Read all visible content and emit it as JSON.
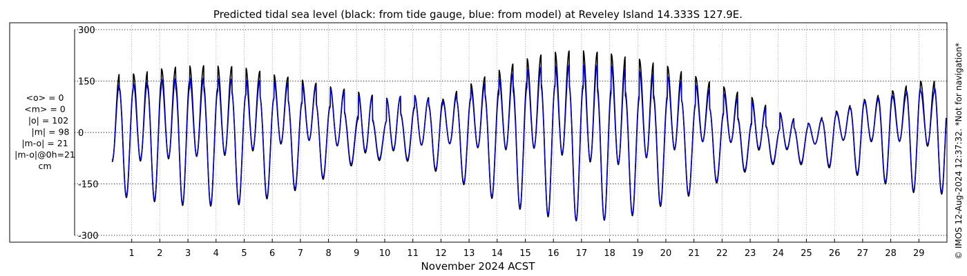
{
  "chart_data": {
    "type": "line",
    "title": "Predicted tidal sea level (black: from tide gauge, blue: from model) at Reveley Island 14.333S 127.9E.",
    "xlabel": "November 2024 ACST",
    "ylabel": "",
    "xlim": [
      0,
      30
    ],
    "ylim": [
      -320,
      320
    ],
    "grid": true,
    "x_ticks": [
      1,
      2,
      3,
      4,
      5,
      6,
      7,
      8,
      9,
      10,
      11,
      12,
      13,
      14,
      15,
      16,
      17,
      18,
      19,
      20,
      21,
      22,
      23,
      24,
      25,
      26,
      27,
      28,
      29
    ],
    "y_ticks": [
      300,
      150,
      0,
      -150,
      -300
    ],
    "y_tick_labels": [
      "300",
      "150",
      "0",
      "-150",
      "-300"
    ],
    "series_style": "semidiurnal tidal oscillation, two highs and two lows per day",
    "series": [
      {
        "color": "#000000",
        "day": [
          1,
          2,
          3,
          4,
          5,
          6,
          7,
          8,
          9,
          10,
          11,
          12,
          13,
          14,
          15,
          16,
          17,
          18,
          19,
          20,
          21,
          22,
          23,
          24,
          25,
          26,
          27,
          28,
          29
        ],
        "high_major": [
          170,
          185,
          195,
          195,
          190,
          170,
          155,
          135,
          120,
          100,
          110,
          95,
          140,
          180,
          215,
          235,
          240,
          230,
          215,
          195,
          165,
          135,
          105,
          60,
          25,
          60,
          95,
          120,
          150
        ],
        "high_minor": [
          125,
          150,
          150,
          130,
          110,
          100,
          85,
          80,
          40,
          30,
          70,
          90,
          95,
          125,
          150,
          140,
          130,
          115,
          100,
          100,
          85,
          55,
          25,
          10,
          15,
          50,
          85,
          100,
          125
        ],
        "low_major": [
          -190,
          -205,
          -215,
          -215,
          -210,
          -190,
          -165,
          -130,
          -90,
          -80,
          -85,
          -120,
          -160,
          -200,
          -230,
          -250,
          -260,
          -255,
          -240,
          -210,
          -180,
          -140,
          -110,
          -90,
          -95,
          -105,
          -130,
          -155,
          -180
        ],
        "low_minor": [
          -85,
          -80,
          -70,
          -70,
          -60,
          -40,
          -20,
          -30,
          -60,
          -60,
          -40,
          -30,
          -40,
          -55,
          -40,
          -60,
          -80,
          -100,
          -80,
          -60,
          -30,
          -20,
          -50,
          -55,
          -40,
          -20,
          -30,
          -20,
          -40
        ]
      },
      {
        "color": "#0000d0",
        "day": [
          1,
          2,
          3,
          4,
          5,
          6,
          7,
          8,
          9,
          10,
          11,
          12,
          13,
          14,
          15,
          16,
          17,
          18,
          19,
          20,
          21,
          22,
          23,
          24,
          25,
          26,
          27,
          28,
          29
        ],
        "high_major": [
          140,
          155,
          160,
          160,
          155,
          150,
          140,
          130,
          110,
          100,
          110,
          90,
          125,
          155,
          185,
          195,
          200,
          195,
          180,
          165,
          140,
          115,
          90,
          55,
          25,
          55,
          90,
          105,
          120
        ],
        "high_minor": [
          130,
          130,
          130,
          120,
          110,
          100,
          90,
          75,
          50,
          30,
          75,
          80,
          100,
          110,
          130,
          135,
          140,
          130,
          110,
          110,
          80,
          60,
          30,
          10,
          15,
          50,
          90,
          110,
          130
        ],
        "low_major": [
          -185,
          -200,
          -210,
          -210,
          -205,
          -185,
          -160,
          -125,
          -85,
          -75,
          -80,
          -115,
          -155,
          -195,
          -225,
          -245,
          -260,
          -255,
          -235,
          -205,
          -175,
          -135,
          -105,
          -85,
          -90,
          -100,
          -125,
          -150,
          -175
        ],
        "low_minor": [
          -80,
          -75,
          -70,
          -65,
          -55,
          -35,
          -20,
          -30,
          -55,
          -55,
          -40,
          -30,
          -40,
          -50,
          -40,
          -55,
          -75,
          -95,
          -80,
          -55,
          -30,
          -20,
          -45,
          -50,
          -40,
          -20,
          -25,
          -20,
          -35
        ]
      }
    ]
  },
  "stats": {
    "lines": [
      "<o> = 0",
      "<m> = 0",
      "|o| = 102",
      "|m| = 98",
      "|m-o| = 21",
      "|m-o|@0h=21",
      "cm"
    ]
  },
  "copyright": "© IMOS 12-Aug-2024 12:37:32. *Not for navigation*"
}
